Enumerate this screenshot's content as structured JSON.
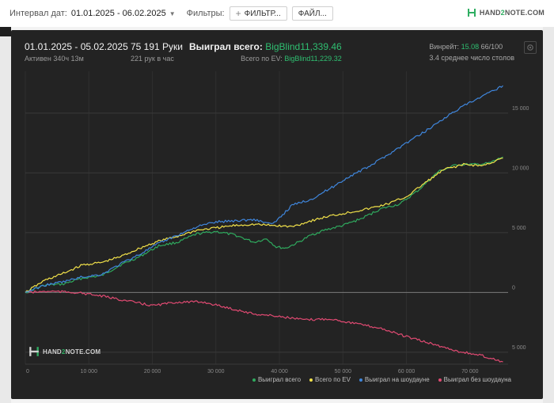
{
  "toolbar": {
    "interval_label": "Интервал дат:",
    "date_range": "01.01.2025 - 06.02.2025",
    "filters_label": "Фильтры:",
    "filter_button": "ФИЛЬТР...",
    "file_button": "ФАЙЛ...",
    "logo_left": "HAND",
    "logo_two": "2",
    "logo_right": "NOTE.COM"
  },
  "summary": {
    "period": "01.01.2025 - 05.02.2025",
    "active": "Активен 340ч 13м",
    "hands": "75 191 Руки",
    "hands_rate": "221 рук в час",
    "won_label": "Выиграл всего:",
    "won_value": "BigBlind11,339.46",
    "ev_label": "Всего по EV:",
    "ev_value": "BigBlind11,229.32",
    "winrate_label": "Винрейт:",
    "winrate_value": "15.08",
    "winrate_extra": "66/100",
    "tables": "3.4 среднее число столов"
  },
  "chart_logo": {
    "left": "HAND",
    "two": "2",
    "right": "NOTE.COM"
  },
  "chart_data": {
    "type": "line",
    "xlim": [
      0,
      76000
    ],
    "ylim": [
      -6000,
      18500
    ],
    "x_ticks": [
      0,
      10000,
      20000,
      30000,
      40000,
      50000,
      60000,
      70000
    ],
    "x_tick_labels": [
      "0",
      "10 000",
      "20 000",
      "30 000",
      "40 000",
      "50 000",
      "60 000",
      "70 000"
    ],
    "y_ticks": [
      -5000,
      0,
      5000,
      10000,
      15000
    ],
    "y_tick_labels": [
      "5 000",
      "0",
      "5 000",
      "10 000",
      "15 000"
    ],
    "grid": true,
    "legend_position": "bottom-right",
    "series": [
      {
        "name": "Выиграл всего",
        "color": "#2faa5e",
        "x": [
          0,
          3000,
          6000,
          9000,
          12000,
          15000,
          18000,
          21000,
          24000,
          27000,
          30000,
          33000,
          36000,
          38000,
          39500,
          41000,
          43000,
          45000,
          47000,
          50000,
          53000,
          56000,
          59000,
          62000,
          65000,
          68000,
          71000,
          73000,
          75191
        ],
        "y": [
          0,
          600,
          700,
          1200,
          1400,
          2300,
          3000,
          3900,
          4200,
          4900,
          5100,
          4800,
          4200,
          4500,
          3800,
          3700,
          4200,
          4800,
          5200,
          5600,
          6200,
          7000,
          7400,
          8600,
          10100,
          10700,
          10700,
          10800,
          11339
        ]
      },
      {
        "name": "Всего по EV",
        "color": "#f2e24a",
        "x": [
          0,
          3000,
          6000,
          9000,
          12000,
          15000,
          18000,
          21000,
          24000,
          27000,
          30000,
          33000,
          36000,
          39000,
          42000,
          45000,
          48000,
          51000,
          54000,
          57000,
          60000,
          63000,
          66000,
          69000,
          72000,
          75191
        ],
        "y": [
          0,
          1000,
          1600,
          2300,
          2500,
          3000,
          3700,
          4300,
          4700,
          5200,
          5400,
          5600,
          5700,
          5600,
          5500,
          6000,
          6400,
          6700,
          7000,
          7400,
          8000,
          9200,
          10300,
          10700,
          10600,
          11229
        ]
      },
      {
        "name": "Выиграл на шоудауне",
        "color": "#3f86dc",
        "x": [
          0,
          3000,
          6000,
          9000,
          12000,
          15000,
          18000,
          21000,
          24000,
          27000,
          30000,
          33000,
          36000,
          39000,
          42000,
          45000,
          48000,
          51000,
          54000,
          57000,
          60000,
          63000,
          66000,
          69000,
          72000,
          75191
        ],
        "y": [
          0,
          600,
          900,
          1300,
          1500,
          2400,
          3200,
          4100,
          4800,
          5500,
          5900,
          6000,
          6100,
          5700,
          7300,
          7800,
          8700,
          9700,
          10500,
          11500,
          12500,
          13500,
          14600,
          15600,
          16400,
          17300
        ]
      },
      {
        "name": "Выиграл без шоудауна",
        "color": "#e04a72",
        "x": [
          0,
          4000,
          8000,
          12000,
          16000,
          20000,
          24000,
          28000,
          32000,
          36000,
          40000,
          44000,
          48000,
          52000,
          56000,
          60000,
          64000,
          68000,
          72000,
          75191
        ],
        "y": [
          0,
          100,
          0,
          -300,
          -700,
          -1100,
          -800,
          -800,
          -1300,
          -1800,
          -2000,
          -2300,
          -2200,
          -2600,
          -3000,
          -3700,
          -4300,
          -4900,
          -5300,
          -5800
        ]
      }
    ]
  }
}
